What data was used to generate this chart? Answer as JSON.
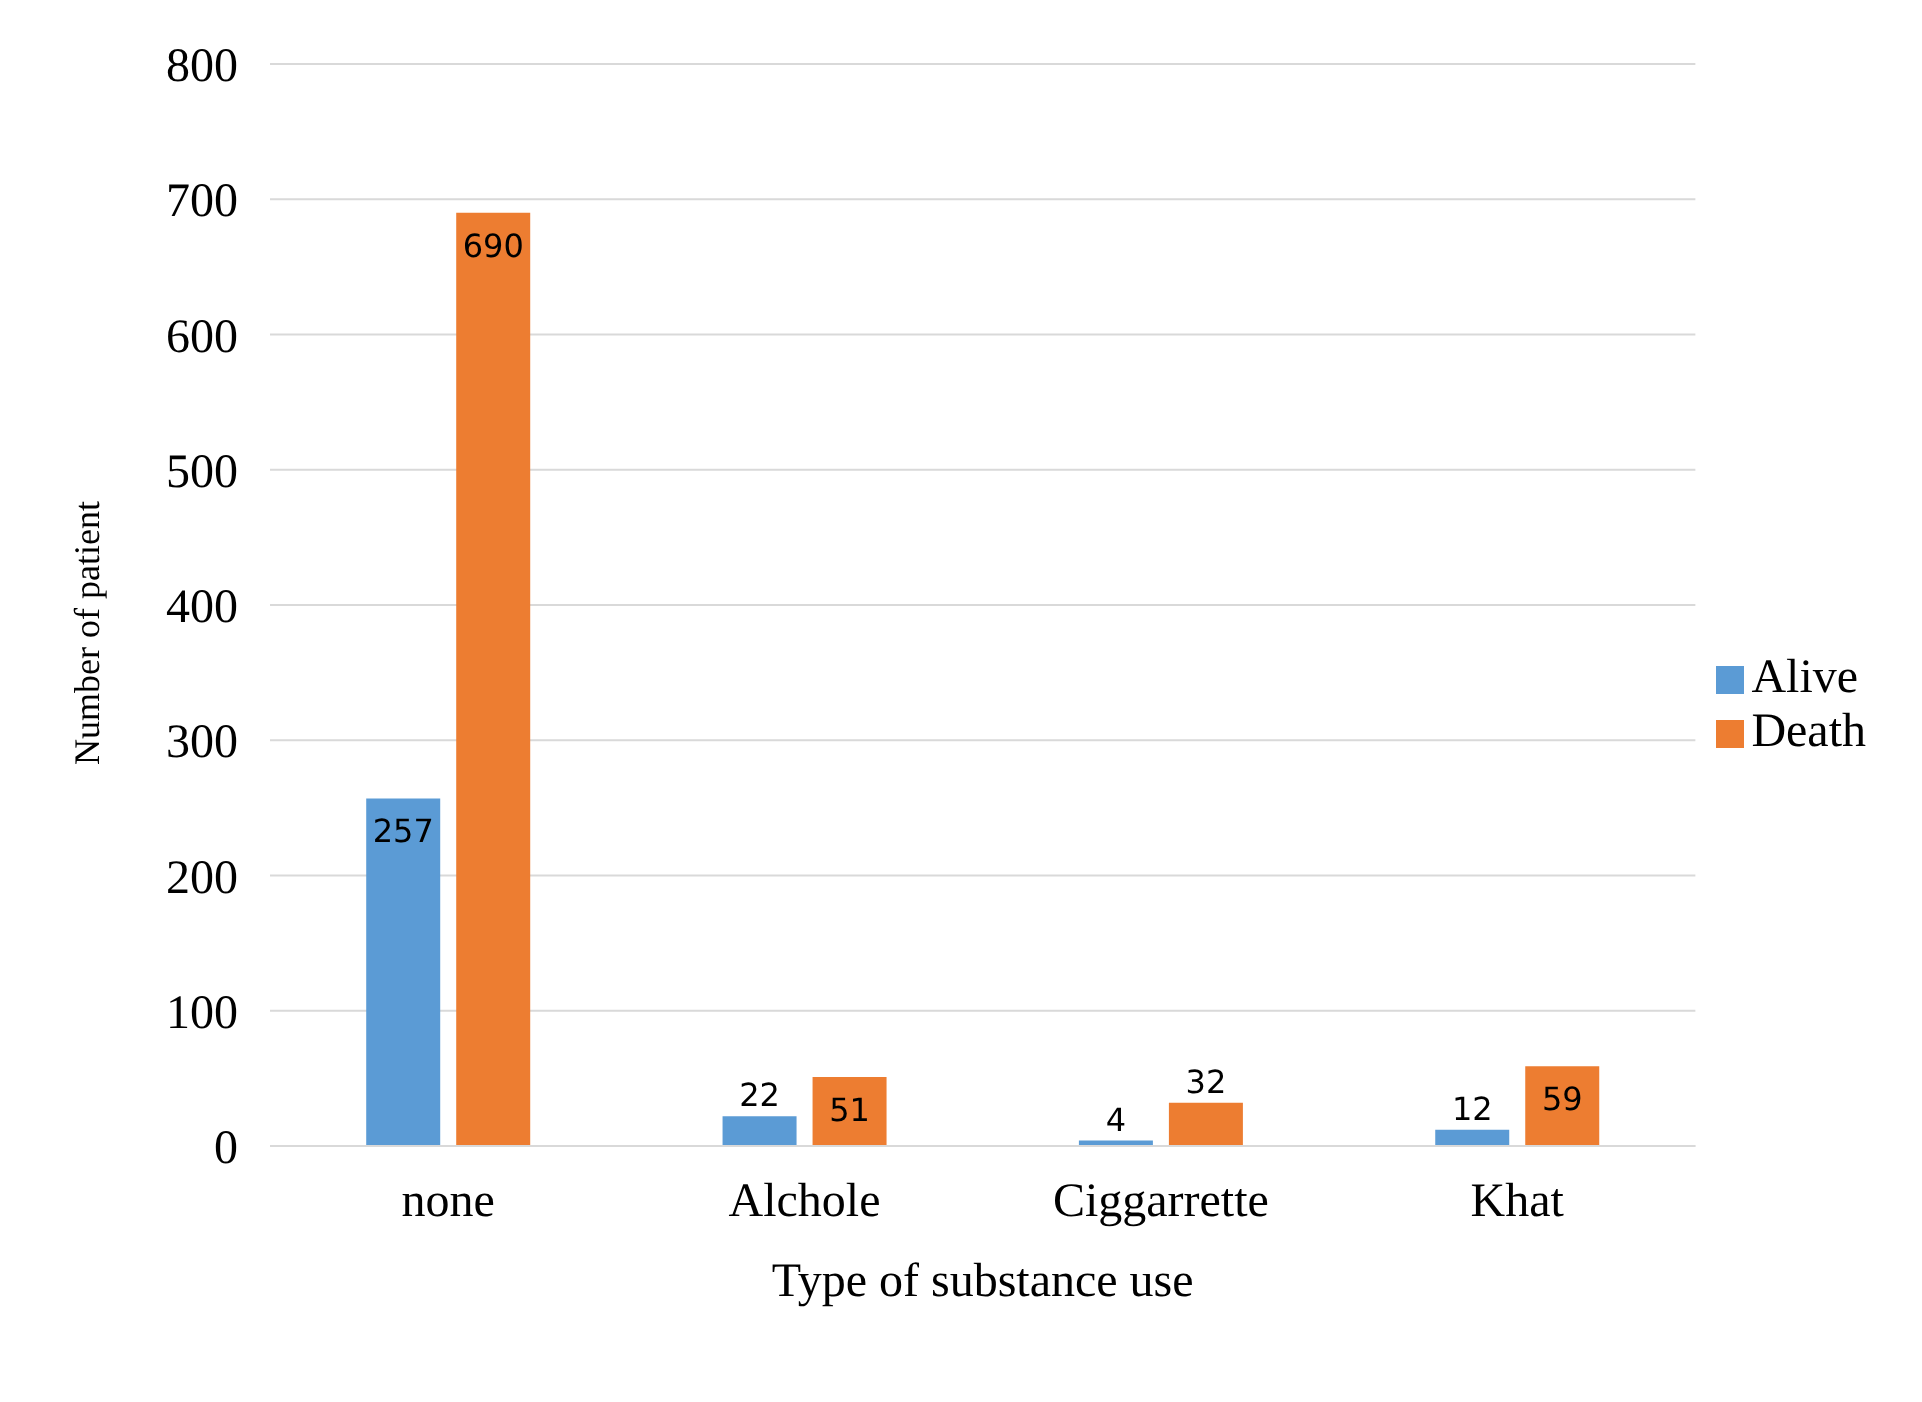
{
  "chart_data": {
    "type": "bar",
    "xlabel": "Type of substance use",
    "ylabel": "Number of patient",
    "categories": [
      "none",
      "Alchole",
      "Ciggarrette",
      "Khat"
    ],
    "series": [
      {
        "name": "Alive",
        "color": "#5b9bd5",
        "values": [
          257,
          22,
          4,
          12
        ]
      },
      {
        "name": "Death",
        "color": "#ed7d31",
        "values": [
          690,
          51,
          32,
          59
        ]
      }
    ],
    "ylim": [
      0,
      800
    ],
    "yticks": [
      0,
      100,
      200,
      300,
      400,
      500,
      600,
      700,
      800
    ],
    "grid": "y",
    "legend": "right",
    "data_labels": true
  }
}
